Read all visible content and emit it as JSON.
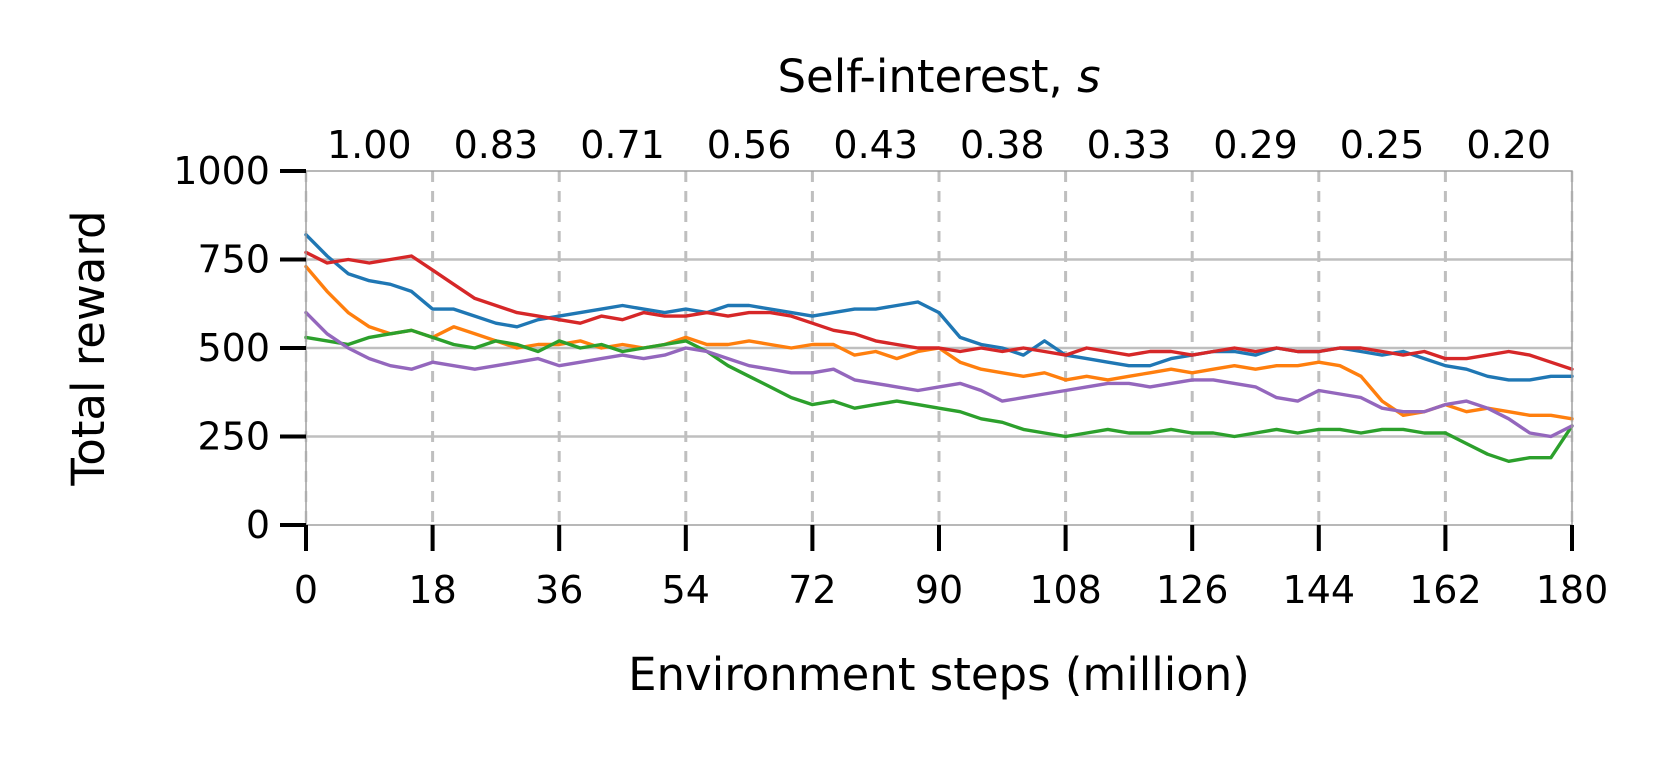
{
  "chart_data": {
    "type": "line",
    "title": "",
    "xlabel": "Environment steps (million)",
    "ylabel": "Total reward",
    "xlim": [
      0,
      180
    ],
    "ylim": [
      0,
      1000
    ],
    "x_ticks": [
      "0",
      "18",
      "36",
      "54",
      "72",
      "90",
      "108",
      "126",
      "144",
      "162",
      "180"
    ],
    "y_ticks": [
      "0",
      "250",
      "500",
      "750",
      "1000"
    ],
    "top_axis": {
      "label_prefix": "Self-interest, ",
      "label_symbol": "s",
      "tick_labels": [
        "1.00",
        "0.83",
        "0.71",
        "0.56",
        "0.43",
        "0.38",
        "0.33",
        "0.29",
        "0.25",
        "0.20"
      ],
      "tick_positions_data": [
        9,
        27,
        45,
        63,
        81,
        99,
        117,
        135,
        153,
        171
      ]
    },
    "vertical_grid_dashed": [
      18,
      36,
      54,
      72,
      90,
      108,
      126,
      144,
      162
    ],
    "horizontal_grid": [
      250,
      500,
      750
    ],
    "legend": "none",
    "series": [
      {
        "color": "#1f77b4",
        "x": [
          0,
          3,
          6,
          9,
          12,
          15,
          18,
          21,
          24,
          27,
          30,
          33,
          36,
          39,
          42,
          45,
          48,
          51,
          54,
          57,
          60,
          63,
          66,
          69,
          72,
          75,
          78,
          81,
          84,
          87,
          90,
          93,
          96,
          99,
          102,
          105,
          108,
          111,
          114,
          117,
          120,
          123,
          126,
          129,
          132,
          135,
          138,
          141,
          144,
          147,
          150,
          153,
          156,
          159,
          162,
          165,
          168,
          171,
          174,
          177,
          180
        ],
        "y": [
          820,
          760,
          710,
          690,
          680,
          660,
          610,
          610,
          590,
          570,
          560,
          580,
          590,
          600,
          610,
          620,
          610,
          600,
          610,
          600,
          620,
          620,
          610,
          600,
          590,
          600,
          610,
          610,
          620,
          630,
          600,
          530,
          510,
          500,
          480,
          520,
          480,
          470,
          460,
          450,
          450,
          470,
          480,
          490,
          490,
          480,
          500,
          490,
          490,
          500,
          490,
          480,
          490,
          470,
          450,
          440,
          420,
          410,
          410,
          420,
          420
        ]
      },
      {
        "color": "#ff7f0e",
        "x": [
          0,
          3,
          6,
          9,
          12,
          15,
          18,
          21,
          24,
          27,
          30,
          33,
          36,
          39,
          42,
          45,
          48,
          51,
          54,
          57,
          60,
          63,
          66,
          69,
          72,
          75,
          78,
          81,
          84,
          87,
          90,
          93,
          96,
          99,
          102,
          105,
          108,
          111,
          114,
          117,
          120,
          123,
          126,
          129,
          132,
          135,
          138,
          141,
          144,
          147,
          150,
          153,
          156,
          159,
          162,
          165,
          168,
          171,
          174,
          177,
          180
        ],
        "y": [
          730,
          660,
          600,
          560,
          540,
          550,
          530,
          560,
          540,
          520,
          500,
          510,
          510,
          520,
          500,
          510,
          500,
          510,
          530,
          510,
          510,
          520,
          510,
          500,
          510,
          510,
          480,
          490,
          470,
          490,
          500,
          460,
          440,
          430,
          420,
          430,
          410,
          420,
          410,
          420,
          430,
          440,
          430,
          440,
          450,
          440,
          450,
          450,
          460,
          450,
          420,
          350,
          310,
          320,
          340,
          320,
          330,
          320,
          310,
          310,
          300
        ]
      },
      {
        "color": "#2ca02c",
        "x": [
          0,
          3,
          6,
          9,
          12,
          15,
          18,
          21,
          24,
          27,
          30,
          33,
          36,
          39,
          42,
          45,
          48,
          51,
          54,
          57,
          60,
          63,
          66,
          69,
          72,
          75,
          78,
          81,
          84,
          87,
          90,
          93,
          96,
          99,
          102,
          105,
          108,
          111,
          114,
          117,
          120,
          123,
          126,
          129,
          132,
          135,
          138,
          141,
          144,
          147,
          150,
          153,
          156,
          159,
          162,
          165,
          168,
          171,
          174,
          177,
          180
        ],
        "y": [
          530,
          520,
          510,
          530,
          540,
          550,
          530,
          510,
          500,
          520,
          510,
          490,
          520,
          500,
          510,
          490,
          500,
          510,
          520,
          490,
          450,
          420,
          390,
          360,
          340,
          350,
          330,
          340,
          350,
          340,
          330,
          320,
          300,
          290,
          270,
          260,
          250,
          260,
          270,
          260,
          260,
          270,
          260,
          260,
          250,
          260,
          270,
          260,
          270,
          270,
          260,
          270,
          270,
          260,
          260,
          230,
          200,
          180,
          190,
          190,
          280
        ]
      },
      {
        "color": "#d62728",
        "x": [
          0,
          3,
          6,
          9,
          12,
          15,
          18,
          21,
          24,
          27,
          30,
          33,
          36,
          39,
          42,
          45,
          48,
          51,
          54,
          57,
          60,
          63,
          66,
          69,
          72,
          75,
          78,
          81,
          84,
          87,
          90,
          93,
          96,
          99,
          102,
          105,
          108,
          111,
          114,
          117,
          120,
          123,
          126,
          129,
          132,
          135,
          138,
          141,
          144,
          147,
          150,
          153,
          156,
          159,
          162,
          165,
          168,
          171,
          174,
          177,
          180
        ],
        "y": [
          770,
          740,
          750,
          740,
          750,
          760,
          720,
          680,
          640,
          620,
          600,
          590,
          580,
          570,
          590,
          580,
          600,
          590,
          590,
          600,
          590,
          600,
          600,
          590,
          570,
          550,
          540,
          520,
          510,
          500,
          500,
          490,
          500,
          490,
          500,
          490,
          480,
          500,
          490,
          480,
          490,
          490,
          480,
          490,
          500,
          490,
          500,
          490,
          490,
          500,
          500,
          490,
          480,
          490,
          470,
          470,
          480,
          490,
          480,
          460,
          440
        ]
      },
      {
        "color": "#9467bd",
        "x": [
          0,
          3,
          6,
          9,
          12,
          15,
          18,
          21,
          24,
          27,
          30,
          33,
          36,
          39,
          42,
          45,
          48,
          51,
          54,
          57,
          60,
          63,
          66,
          69,
          72,
          75,
          78,
          81,
          84,
          87,
          90,
          93,
          96,
          99,
          102,
          105,
          108,
          111,
          114,
          117,
          120,
          123,
          126,
          129,
          132,
          135,
          138,
          141,
          144,
          147,
          150,
          153,
          156,
          159,
          162,
          165,
          168,
          171,
          174,
          177,
          180
        ],
        "y": [
          600,
          540,
          500,
          470,
          450,
          440,
          460,
          450,
          440,
          450,
          460,
          470,
          450,
          460,
          470,
          480,
          470,
          480,
          500,
          490,
          470,
          450,
          440,
          430,
          430,
          440,
          410,
          400,
          390,
          380,
          390,
          400,
          380,
          350,
          360,
          370,
          380,
          390,
          400,
          400,
          390,
          400,
          410,
          410,
          400,
          390,
          360,
          350,
          380,
          370,
          360,
          330,
          320,
          320,
          340,
          350,
          330,
          300,
          260,
          250,
          280
        ]
      }
    ]
  }
}
